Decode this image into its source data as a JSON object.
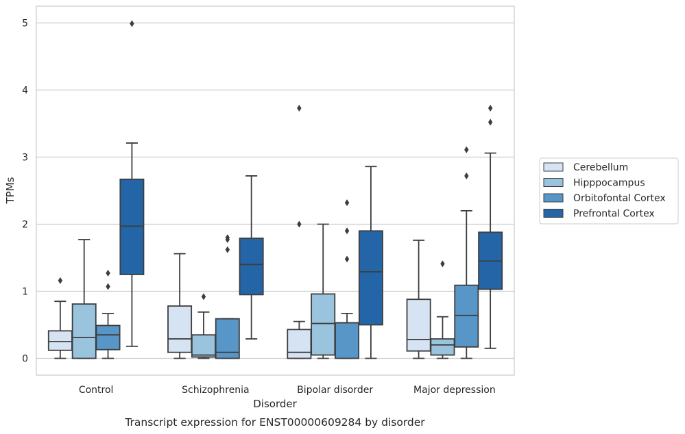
{
  "chart_data": {
    "type": "box",
    "title": "",
    "caption": "Transcript expression for ENST00000609284 by disorder",
    "xlabel": "Disorder",
    "ylabel": "TPMs",
    "ylim": [
      -0.25,
      5.25
    ],
    "yticks": [
      0,
      1,
      2,
      3,
      4,
      5
    ],
    "grid": "horizontal",
    "legend_position": "right",
    "categories": [
      "Control",
      "Schizophrenia",
      "Bipolar disorder",
      "Major depression"
    ],
    "series": [
      {
        "name": "Cerebellum",
        "color": "#d5e3f3",
        "boxes": [
          {
            "whisker_low": 0.0,
            "q1": 0.12,
            "median": 0.25,
            "q3": 0.41,
            "whisker_high": 0.85,
            "outliers": [
              1.16
            ]
          },
          {
            "whisker_low": 0.0,
            "q1": 0.09,
            "median": 0.29,
            "q3": 0.78,
            "whisker_high": 1.56,
            "outliers": []
          },
          {
            "whisker_low": 0.0,
            "q1": 0.0,
            "median": 0.09,
            "q3": 0.43,
            "whisker_high": 0.55,
            "outliers": [
              2.0,
              3.73
            ]
          },
          {
            "whisker_low": 0.0,
            "q1": 0.11,
            "median": 0.28,
            "q3": 0.88,
            "whisker_high": 1.76,
            "outliers": []
          }
        ]
      },
      {
        "name": "Hipppocampus",
        "color": "#9ac4de",
        "boxes": [
          {
            "whisker_low": 0.0,
            "q1": 0.0,
            "median": 0.31,
            "q3": 0.81,
            "whisker_high": 1.77,
            "outliers": []
          },
          {
            "whisker_low": 0.0,
            "q1": 0.02,
            "median": 0.05,
            "q3": 0.35,
            "whisker_high": 0.69,
            "outliers": [
              0.92
            ]
          },
          {
            "whisker_low": 0.0,
            "q1": 0.05,
            "median": 0.52,
            "q3": 0.96,
            "whisker_high": 2.0,
            "outliers": []
          },
          {
            "whisker_low": 0.0,
            "q1": 0.05,
            "median": 0.2,
            "q3": 0.29,
            "whisker_high": 0.62,
            "outliers": [
              1.41
            ]
          }
        ]
      },
      {
        "name": "Orbitofontal Cortex",
        "color": "#5896c8",
        "boxes": [
          {
            "whisker_low": 0.0,
            "q1": 0.13,
            "median": 0.35,
            "q3": 0.49,
            "whisker_high": 0.67,
            "outliers": [
              1.07,
              1.27
            ]
          },
          {
            "whisker_low": 0.0,
            "q1": 0.0,
            "median": 0.09,
            "q3": 0.59,
            "whisker_high": 0.59,
            "outliers": [
              1.62,
              1.77,
              1.8
            ]
          },
          {
            "whisker_low": 0.0,
            "q1": 0.0,
            "median": 0.53,
            "q3": 0.53,
            "whisker_high": 0.67,
            "outliers": [
              1.48,
              1.9,
              2.32
            ]
          },
          {
            "whisker_low": 0.0,
            "q1": 0.17,
            "median": 0.64,
            "q3": 1.09,
            "whisker_high": 2.2,
            "outliers": [
              2.72,
              3.11
            ]
          }
        ]
      },
      {
        "name": "Prefrontal Cortex",
        "color": "#2465a8",
        "boxes": [
          {
            "whisker_low": 0.18,
            "q1": 1.25,
            "median": 1.97,
            "q3": 2.67,
            "whisker_high": 3.21,
            "outliers": [
              4.99
            ]
          },
          {
            "whisker_low": 0.29,
            "q1": 0.95,
            "median": 1.4,
            "q3": 1.79,
            "whisker_high": 2.72,
            "outliers": []
          },
          {
            "whisker_low": 0.0,
            "q1": 0.5,
            "median": 1.29,
            "q3": 1.9,
            "whisker_high": 2.86,
            "outliers": []
          },
          {
            "whisker_low": 0.15,
            "q1": 1.03,
            "median": 1.45,
            "q3": 1.88,
            "whisker_high": 3.06,
            "outliers": [
              3.52,
              3.73
            ]
          }
        ]
      }
    ]
  }
}
